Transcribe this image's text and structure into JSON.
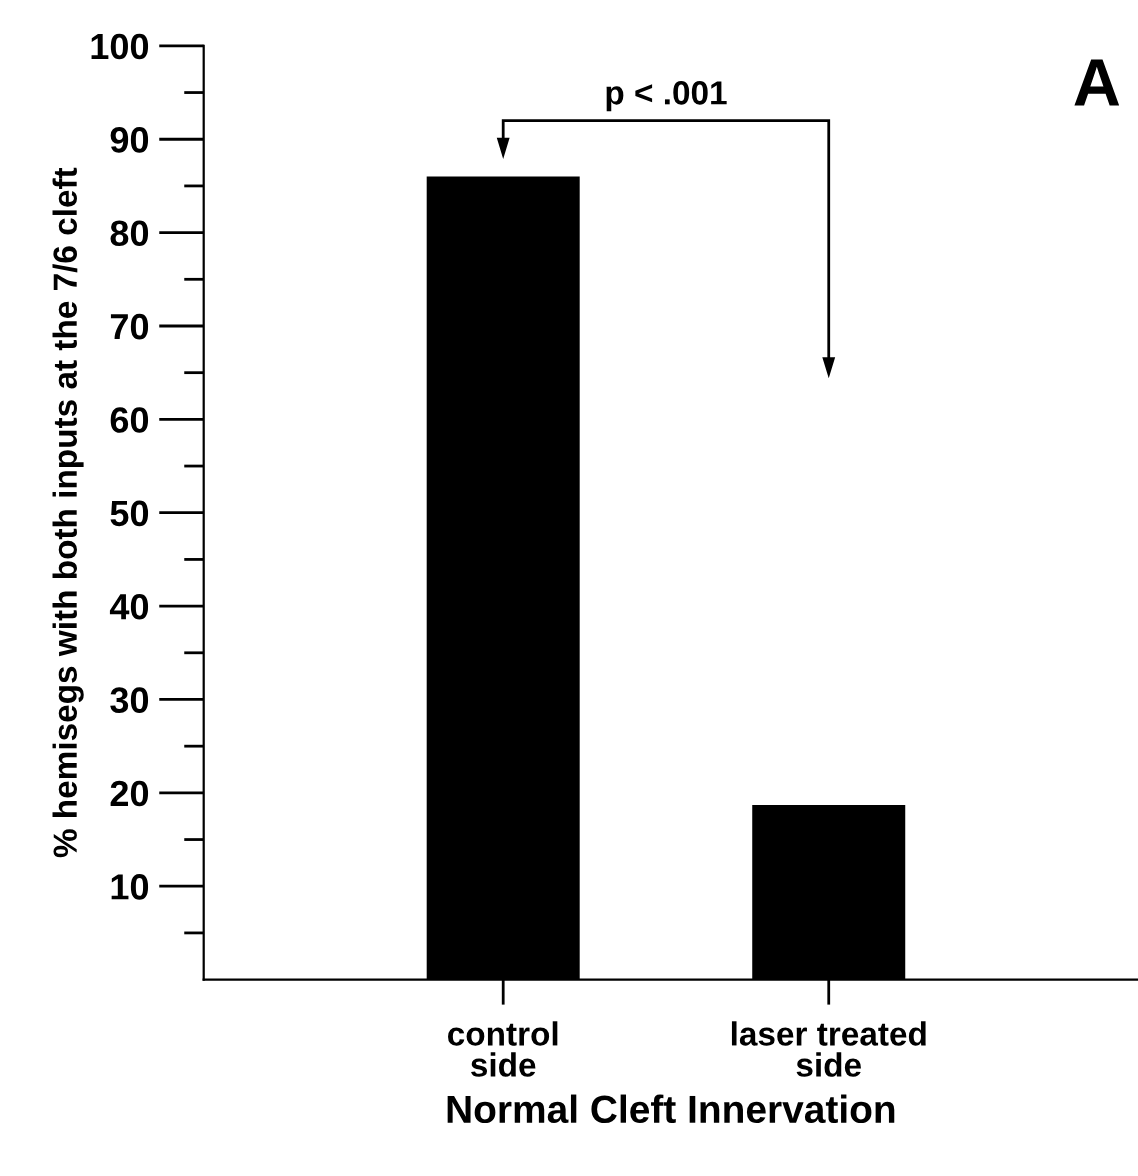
{
  "chart_data": {
    "type": "bar",
    "categories": [
      "control\nside",
      "laser treated\nside"
    ],
    "values": [
      86,
      18.7
    ],
    "color": "#000000",
    "xlabel": "Normal Cleft Innervation",
    "ylabel": "% hemisegs with both inputs at the 7/6 cleft",
    "ylim": [
      0,
      100
    ],
    "yticks": [
      {
        "value": 5,
        "label": null
      },
      10,
      {
        "value": 15,
        "label": null
      },
      20,
      {
        "value": 25,
        "label": null
      },
      30,
      {
        "value": 35,
        "label": null
      },
      40,
      {
        "value": 45,
        "label": null
      },
      50,
      {
        "value": 55,
        "label": null
      },
      60,
      {
        "value": 65,
        "label": null
      },
      70,
      {
        "value": 75,
        "label": null
      },
      80,
      {
        "value": 85,
        "label": null
      },
      90,
      {
        "value": 95,
        "label": null
      },
      100
    ],
    "annotations": [
      "p < .001",
      "A"
    ],
    "grid": false,
    "legend": false
  }
}
